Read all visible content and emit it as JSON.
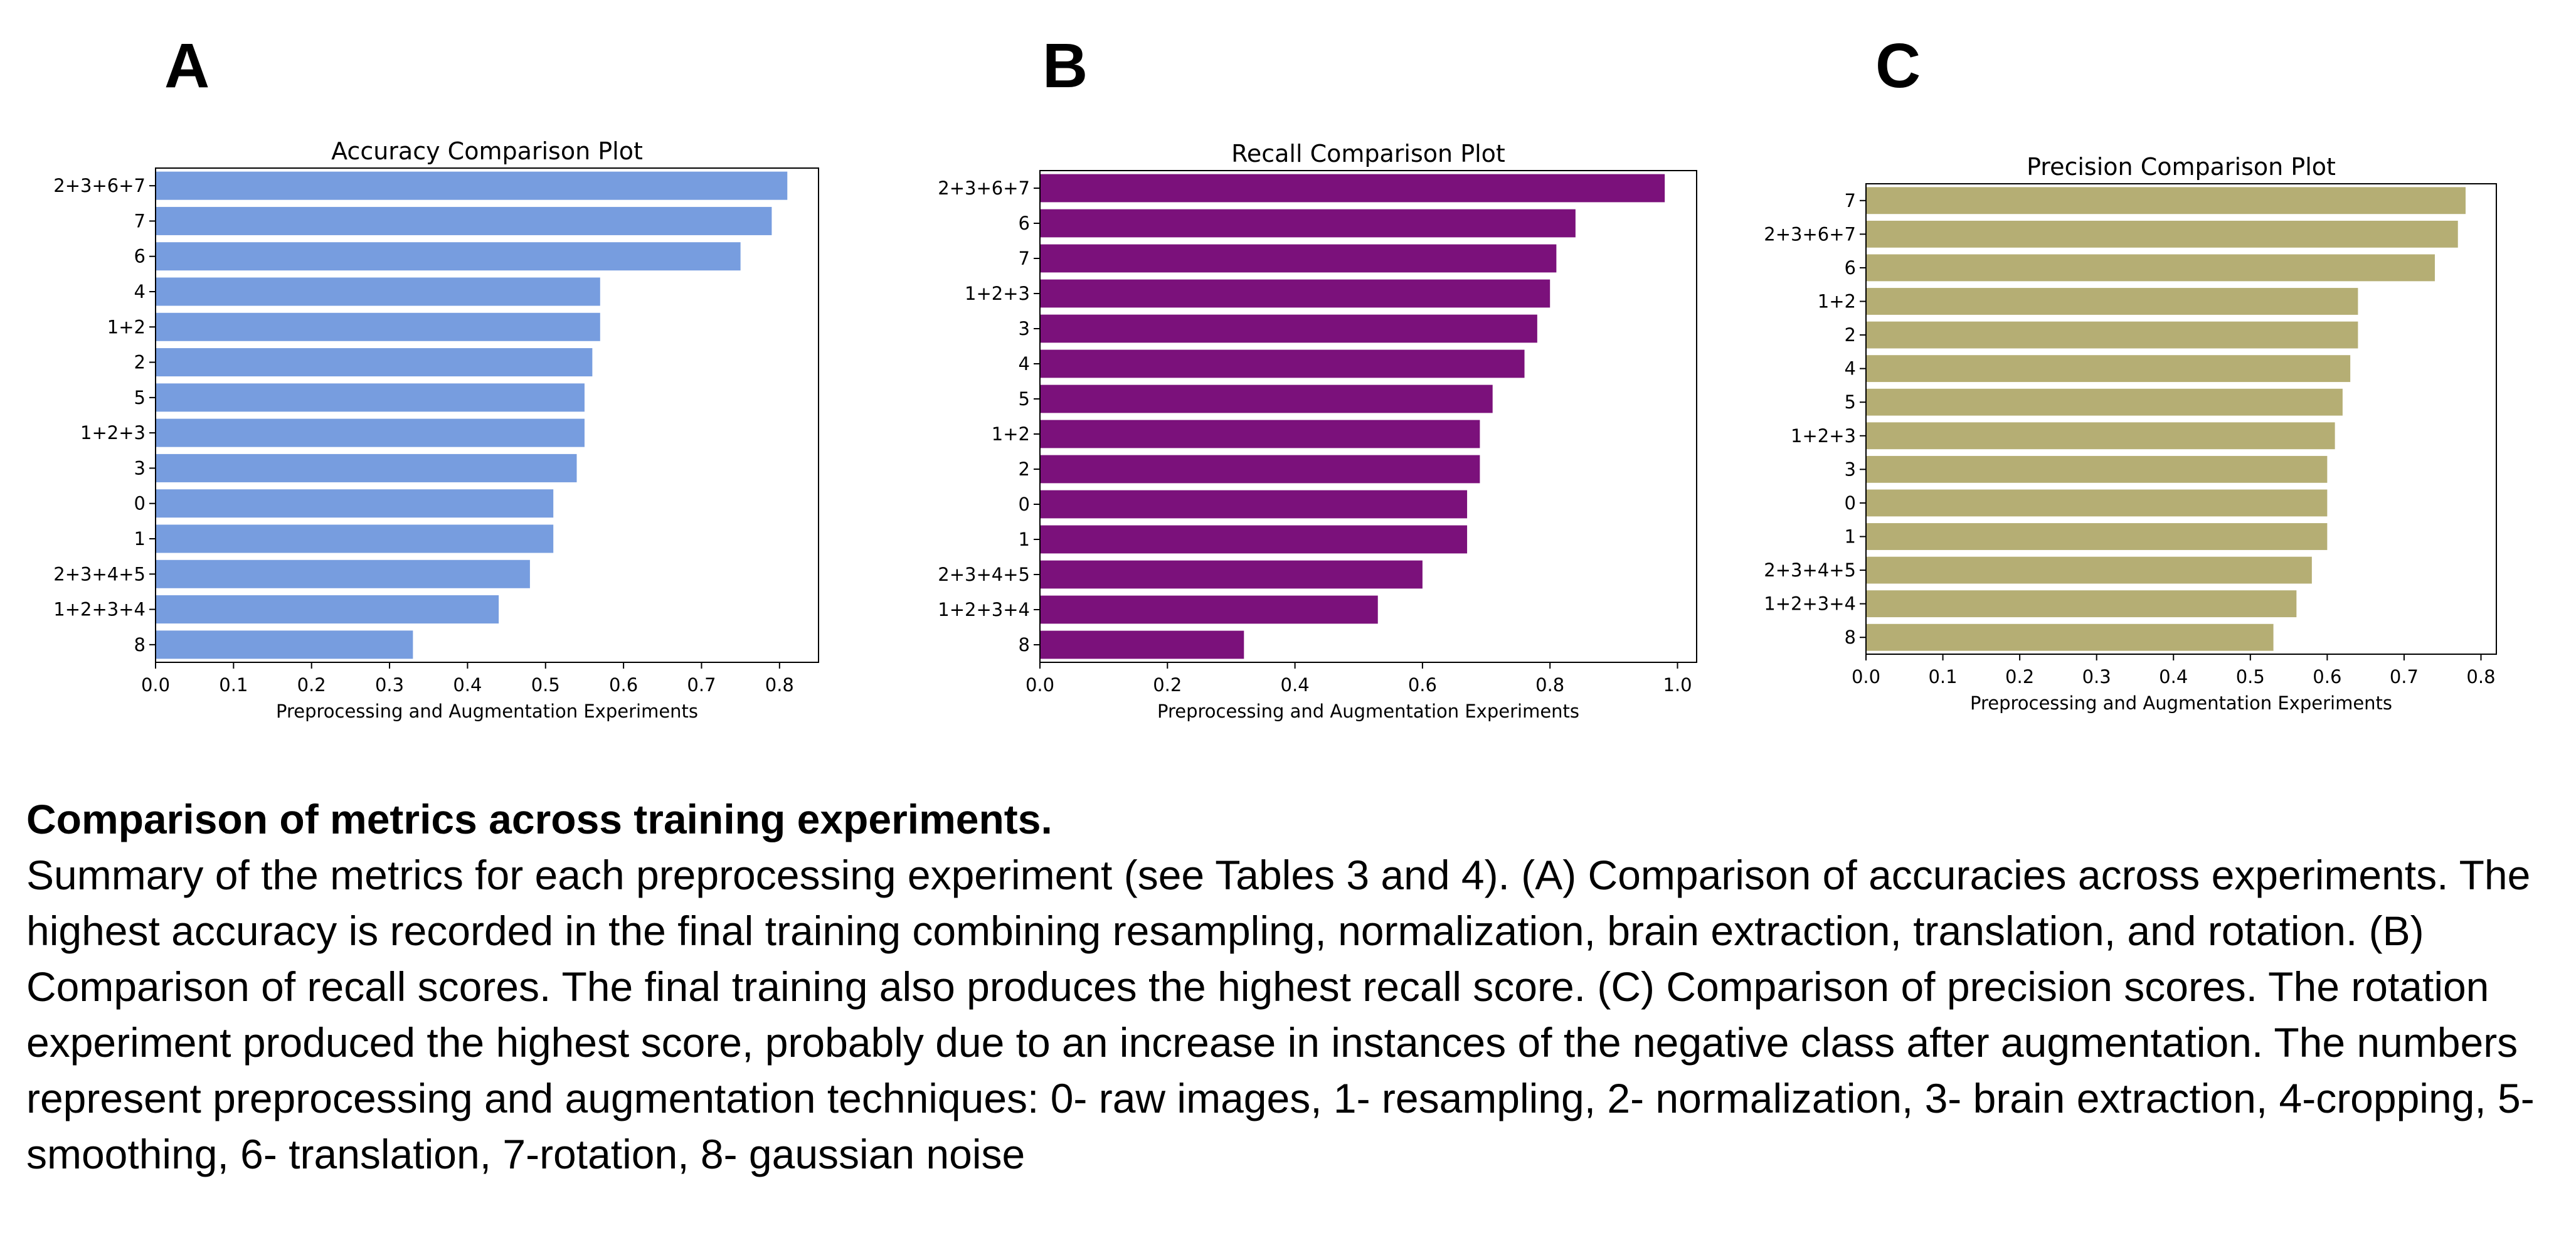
{
  "panels": {
    "a": "A",
    "b": "B",
    "c": "C"
  },
  "caption": {
    "title": "Comparison of metrics across training experiments.",
    "body": "Summary of the metrics for each preprocessing experiment (see Tables 3 and 4). (A) Comparison of accuracies across experiments. The highest accuracy is recorded in the final training combining resampling, normalization, brain extraction, translation, and rotation. (B) Comparison of recall scores. The final training also produces the highest recall score. (C) Comparison of precision scores. The rotation experiment produced the highest score, probably due to an increase in instances of the negative class after augmentation. The numbers represent preprocessing and augmentation techniques: 0- raw images, 1- resampling, 2- normalization, 3- brain extraction, 4-cropping, 5- smoothing, 6- translation, 7-rotation, 8- gaussian noise"
  },
  "chart_data": [
    {
      "type": "bar",
      "orientation": "horizontal",
      "title": "Accuracy Comparison Plot",
      "xlabel": "Preprocessing and Augmentation Experiments",
      "ylabel": "",
      "color": "#779ddf",
      "xlim": [
        0,
        0.85
      ],
      "xticks": [
        "0.0",
        "0.1",
        "0.2",
        "0.3",
        "0.4",
        "0.5",
        "0.6",
        "0.7",
        "0.8"
      ],
      "categories": [
        "2+3+6+7",
        "7",
        "6",
        "4",
        "1+2",
        "2",
        "5",
        "1+2+3",
        "3",
        "0",
        "1",
        "2+3+4+5",
        "1+2+3+4",
        "8"
      ],
      "values": [
        0.81,
        0.79,
        0.75,
        0.57,
        0.57,
        0.56,
        0.55,
        0.55,
        0.54,
        0.51,
        0.51,
        0.48,
        0.44,
        0.33
      ]
    },
    {
      "type": "bar",
      "orientation": "horizontal",
      "title": "Recall Comparison Plot",
      "xlabel": "Preprocessing and Augmentation Experiments",
      "ylabel": "",
      "color": "#7b117b",
      "xlim": [
        0,
        1.03
      ],
      "xticks": [
        "0.0",
        "0.2",
        "0.4",
        "0.6",
        "0.8",
        "1.0"
      ],
      "categories": [
        "2+3+6+7",
        "6",
        "7",
        "1+2+3",
        "3",
        "4",
        "5",
        "1+2",
        "2",
        "0",
        "1",
        "2+3+4+5",
        "1+2+3+4",
        "8"
      ],
      "values": [
        0.98,
        0.84,
        0.81,
        0.8,
        0.78,
        0.76,
        0.71,
        0.69,
        0.69,
        0.67,
        0.67,
        0.6,
        0.53,
        0.32
      ]
    },
    {
      "type": "bar",
      "orientation": "horizontal",
      "title": "Precision Comparison Plot",
      "xlabel": "Preprocessing and Augmentation Experiments",
      "ylabel": "",
      "color": "#b5ae74",
      "xlim": [
        0,
        0.82
      ],
      "xticks": [
        "0.0",
        "0.1",
        "0.2",
        "0.3",
        "0.4",
        "0.5",
        "0.6",
        "0.7",
        "0.8"
      ],
      "categories": [
        "7",
        "2+3+6+7",
        "6",
        "1+2",
        "2",
        "4",
        "5",
        "1+2+3",
        "3",
        "0",
        "1",
        "2+3+4+5",
        "1+2+3+4",
        "8"
      ],
      "values": [
        0.78,
        0.77,
        0.74,
        0.64,
        0.64,
        0.63,
        0.62,
        0.61,
        0.6,
        0.6,
        0.6,
        0.58,
        0.56,
        0.53
      ]
    }
  ]
}
